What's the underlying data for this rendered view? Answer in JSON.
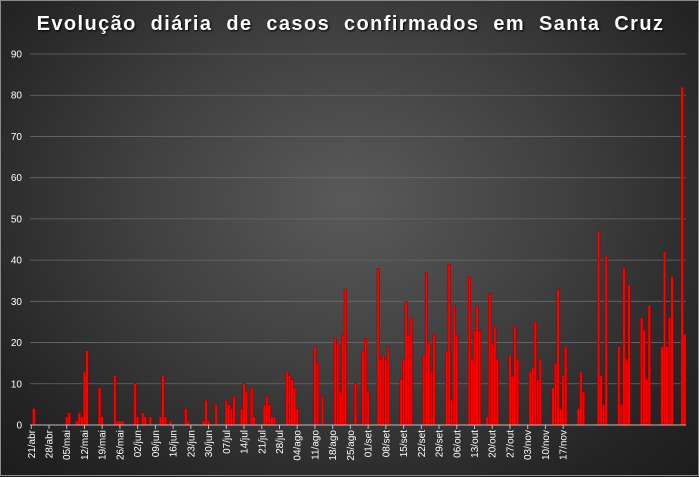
{
  "chart_data": {
    "type": "bar",
    "title": "Evolução  diária  de  casos  confirmados  em  Santa  Cruz",
    "xlabel": "",
    "ylabel": "",
    "ylim": [
      0,
      90
    ],
    "yticks": [
      0,
      10,
      20,
      30,
      40,
      50,
      60,
      70,
      80,
      90
    ],
    "grid": true,
    "legend": "none",
    "bar_color": "#ff0000",
    "bar_edge_color": "#8b0000",
    "start_date": "2020-04-21",
    "end_date": "2020-11-19",
    "xtick_labels": [
      "21/abr",
      "28/abr",
      "05/mai",
      "12/mai",
      "19/mai",
      "26/mai",
      "02/jun",
      "09/jun",
      "16/jun",
      "23/jun",
      "30/jun",
      "07/jul",
      "14/jul",
      "21/jul",
      "28/jul",
      "04/ago",
      "11/ago",
      "18/ago",
      "25/ago",
      "01/set",
      "08/set",
      "15/set",
      "22/set",
      "29/set",
      "06/out",
      "13/out",
      "20/out",
      "27/out",
      "03/nov",
      "10/nov",
      "17/nov"
    ],
    "values": [
      0,
      4,
      0,
      0,
      0,
      0,
      0,
      0,
      0,
      0,
      0,
      0,
      0,
      0,
      2,
      3,
      0,
      0,
      1,
      3,
      2,
      13,
      18,
      0,
      0,
      0,
      0,
      9,
      2,
      0,
      0,
      0,
      0,
      12,
      1,
      1,
      1,
      0,
      0,
      0,
      0,
      10,
      2,
      0,
      3,
      2,
      0,
      2,
      0,
      0,
      0,
      2,
      12,
      2,
      0,
      1,
      0,
      0,
      0,
      0,
      0,
      4,
      1,
      0,
      0,
      0,
      0,
      0,
      1,
      6,
      1,
      0,
      0,
      5,
      0,
      0,
      0,
      6,
      5,
      4,
      7,
      0,
      0,
      4,
      10,
      8,
      0,
      9,
      2,
      0,
      0,
      0,
      5,
      7,
      5,
      2,
      2,
      0,
      0,
      0,
      0,
      13,
      12,
      11,
      9,
      4,
      0,
      0,
      0,
      0,
      0,
      0,
      19,
      15,
      0,
      7,
      0,
      0,
      0,
      0,
      21,
      20,
      8,
      22,
      33,
      0,
      0,
      0,
      10,
      0,
      0,
      18,
      21,
      8,
      0,
      0,
      0,
      38,
      16,
      17,
      16,
      19,
      0,
      0,
      0,
      0,
      11,
      16,
      30,
      22,
      26,
      0,
      0,
      0,
      0,
      17,
      37,
      20,
      13,
      22,
      0,
      0,
      0,
      0,
      18,
      39,
      6,
      29,
      22,
      0,
      0,
      0,
      0,
      36,
      16,
      23,
      29,
      23,
      0,
      0,
      2,
      32,
      20,
      24,
      16,
      0,
      0,
      0,
      0,
      17,
      12,
      24,
      16,
      0,
      0,
      0,
      0,
      13,
      14,
      25,
      11,
      16,
      0,
      0,
      0,
      0,
      9,
      15,
      33,
      4,
      12,
      19,
      0,
      0,
      0,
      0,
      4,
      13,
      8,
      0,
      0,
      0,
      0,
      0,
      47,
      12,
      5,
      41,
      0,
      0,
      0,
      0,
      19,
      5,
      38,
      16,
      34,
      0,
      0,
      0,
      0,
      26,
      23,
      11,
      29,
      0,
      0,
      0,
      0,
      19,
      42,
      19,
      26,
      36,
      0,
      0,
      0,
      82,
      22
    ]
  }
}
